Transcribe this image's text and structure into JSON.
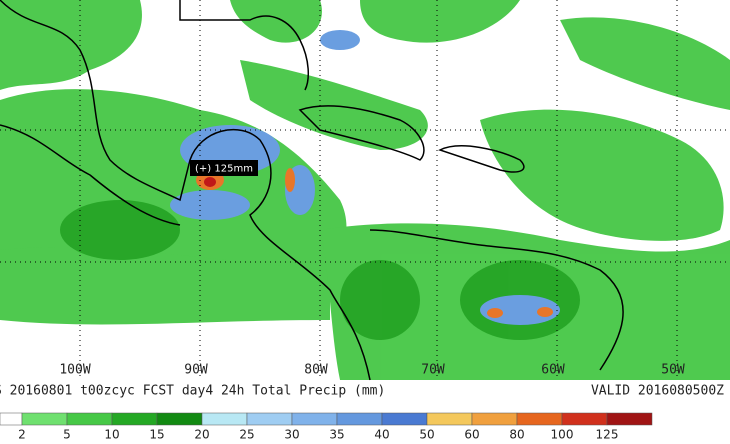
{
  "map": {
    "lon_labels": [
      "100W",
      "90W",
      "80W",
      "70W",
      "60W",
      "50W"
    ],
    "annotation": "(+) 125mm",
    "caption": "S 20160801 t00zcyc FCST day4 24h Total Precip (mm)",
    "valid": "VALID 2016080500Z"
  },
  "colorbar": {
    "labels": [
      "2",
      "5",
      "10",
      "15",
      "20",
      "25",
      "30",
      "35",
      "40",
      "50",
      "60",
      "80",
      "100",
      "125"
    ],
    "colors": [
      "#ffffff",
      "#6fe06f",
      "#46c846",
      "#24a824",
      "#128a12",
      "#b8e8f4",
      "#9fcdf2",
      "#80b2ea",
      "#6498de",
      "#4a7ad2",
      "#f4c85c",
      "#f0a03e",
      "#e6661e",
      "#d0301c",
      "#a01414"
    ]
  }
}
